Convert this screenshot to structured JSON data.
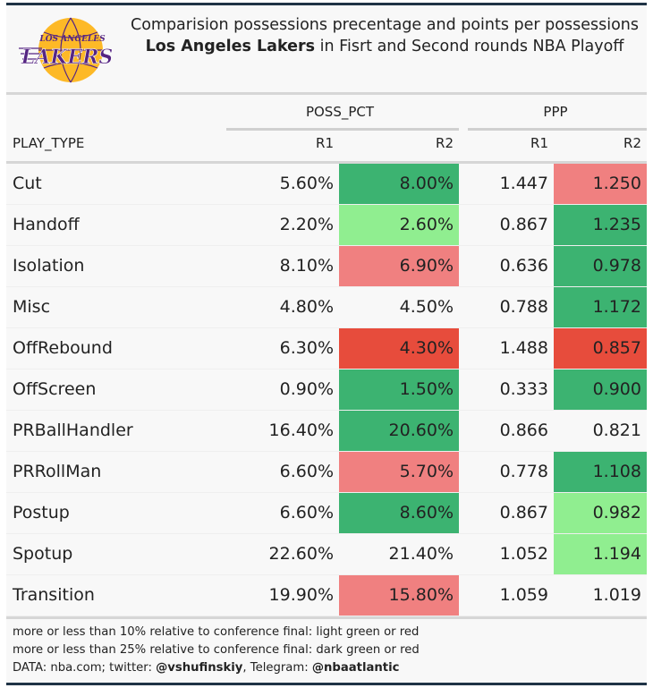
{
  "header": {
    "logo_text_top": "LOS ANGELES",
    "logo_text_main": "LAKERS",
    "title_line1": "Comparision possessions precentage and points per possessions",
    "title_team": "Los Angeles Lakers",
    "title_line2_rest": " in Fisrt and Second rounds NBA Playoff"
  },
  "colors": {
    "dark_green": "#3cb371",
    "light_green": "#90ee90",
    "light_red": "#f08080",
    "dark_red": "#e74c3c",
    "lakers_purple": "#552583",
    "lakers_gold": "#fdb927"
  },
  "chart_data": {
    "type": "table",
    "title": "Comparision possessions precentage and points per possessions — Los Angeles Lakers in Fisrt and Second rounds NBA Playoff",
    "column_groups": [
      {
        "label": "POSS_PCT",
        "columns": [
          "R1",
          "R2"
        ]
      },
      {
        "label": "PPP",
        "columns": [
          "R1",
          "R2"
        ]
      }
    ],
    "row_header": "PLAY_TYPE",
    "rows": [
      {
        "play_type": "Cut",
        "poss_r1": "5.60%",
        "poss_r2": "8.00%",
        "poss_r2_color": "dark_green",
        "ppp_r1": "1.447",
        "ppp_r2": "1.250",
        "ppp_r2_color": "light_red"
      },
      {
        "play_type": "Handoff",
        "poss_r1": "2.20%",
        "poss_r2": "2.60%",
        "poss_r2_color": "light_green",
        "ppp_r1": "0.867",
        "ppp_r2": "1.235",
        "ppp_r2_color": "dark_green"
      },
      {
        "play_type": "Isolation",
        "poss_r1": "8.10%",
        "poss_r2": "6.90%",
        "poss_r2_color": "light_red",
        "ppp_r1": "0.636",
        "ppp_r2": "0.978",
        "ppp_r2_color": "dark_green"
      },
      {
        "play_type": "Misc",
        "poss_r1": "4.80%",
        "poss_r2": "4.50%",
        "poss_r2_color": "none",
        "ppp_r1": "0.788",
        "ppp_r2": "1.172",
        "ppp_r2_color": "dark_green"
      },
      {
        "play_type": "OffRebound",
        "poss_r1": "6.30%",
        "poss_r2": "4.30%",
        "poss_r2_color": "dark_red",
        "ppp_r1": "1.488",
        "ppp_r2": "0.857",
        "ppp_r2_color": "dark_red"
      },
      {
        "play_type": "OffScreen",
        "poss_r1": "0.90%",
        "poss_r2": "1.50%",
        "poss_r2_color": "dark_green",
        "ppp_r1": "0.333",
        "ppp_r2": "0.900",
        "ppp_r2_color": "dark_green"
      },
      {
        "play_type": "PRBallHandler",
        "poss_r1": "16.40%",
        "poss_r2": "20.60%",
        "poss_r2_color": "dark_green",
        "ppp_r1": "0.866",
        "ppp_r2": "0.821",
        "ppp_r2_color": "none"
      },
      {
        "play_type": "PRRollMan",
        "poss_r1": "6.60%",
        "poss_r2": "5.70%",
        "poss_r2_color": "light_red",
        "ppp_r1": "0.778",
        "ppp_r2": "1.108",
        "ppp_r2_color": "dark_green"
      },
      {
        "play_type": "Postup",
        "poss_r1": "6.60%",
        "poss_r2": "8.60%",
        "poss_r2_color": "dark_green",
        "ppp_r1": "0.867",
        "ppp_r2": "0.982",
        "ppp_r2_color": "light_green"
      },
      {
        "play_type": "Spotup",
        "poss_r1": "22.60%",
        "poss_r2": "21.40%",
        "poss_r2_color": "none",
        "ppp_r1": "1.052",
        "ppp_r2": "1.194",
        "ppp_r2_color": "light_green"
      },
      {
        "play_type": "Transition",
        "poss_r1": "19.90%",
        "poss_r2": "15.80%",
        "poss_r2_color": "light_red",
        "ppp_r1": "1.059",
        "ppp_r2": "1.019",
        "ppp_r2_color": "none"
      }
    ]
  },
  "footer": {
    "note1": "more or less than 10% relative to conference final: light green or red",
    "note2": "more or less than 25% relative to conference final: dark green or red",
    "source_prefix": "DATA: nba.com; twitter: ",
    "twitter": "@vshufinskiy",
    "telegram_prefix": ", Telegram: ",
    "telegram": "@nbaatlantic"
  }
}
